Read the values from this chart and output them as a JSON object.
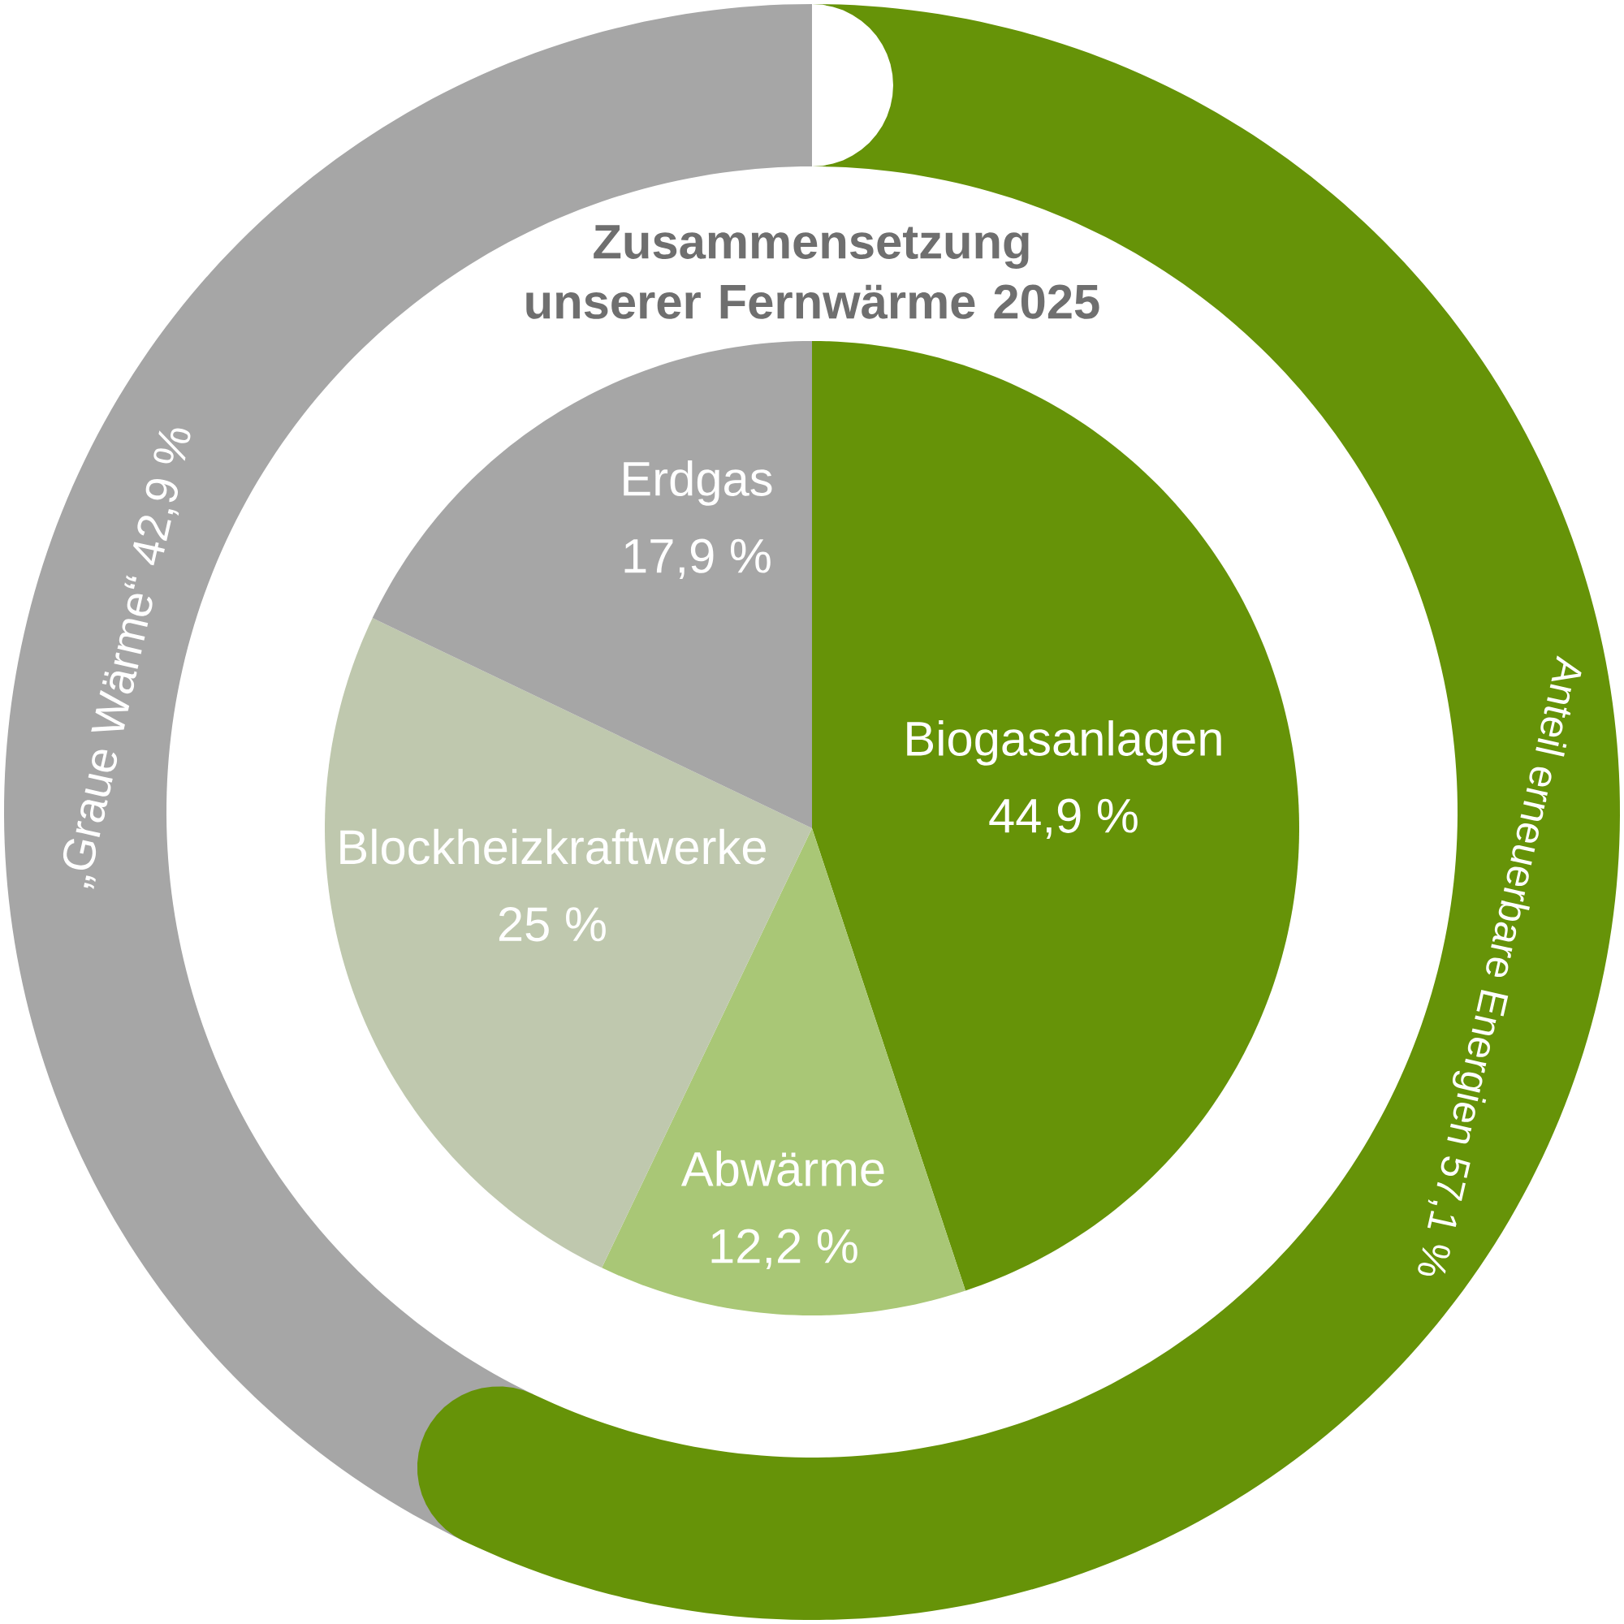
{
  "chart_data": [
    {
      "type": "pie",
      "title": "Zusammensetzung unserer Fernwärme 2025",
      "categories": [
        "Biogasanlagen",
        "Abwärme",
        "Blockheizkraftwerke",
        "Erdgas"
      ],
      "values": [
        44.9,
        12.2,
        25,
        17.9
      ],
      "value_labels": [
        "44,9 %",
        "12,2 %",
        "25 %",
        "17,9 %"
      ],
      "colors": [
        "#669308",
        "#a9c776",
        "#bfc8ae",
        "#a6a6a6"
      ]
    },
    {
      "type": "donut",
      "categories": [
        "„Graue Wärme“",
        "Anteil erneuerbare Energien"
      ],
      "values": [
        42.9,
        57.1
      ],
      "value_labels": [
        "42,9 %",
        "57,1 %"
      ],
      "colors": [
        "#a6a6a6",
        "#669308"
      ]
    }
  ]
}
